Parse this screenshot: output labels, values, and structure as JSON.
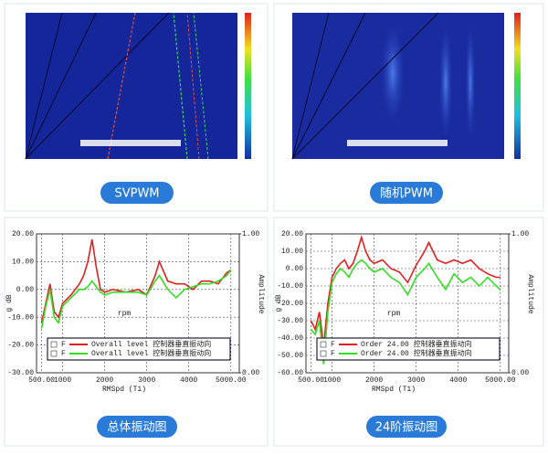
{
  "panels": [
    {
      "caption": "SVPWM"
    },
    {
      "caption": "随机PWM"
    }
  ],
  "chart_data": [
    {
      "type": "line",
      "caption": "总体振动图",
      "ylabel": "g dB",
      "y2label": "Amplitude",
      "xlabel": "RMSpd (T1)",
      "xunit": "rpm",
      "x": [
        500,
        600,
        700,
        800,
        900,
        1000,
        1200,
        1400,
        1500,
        1600,
        1700,
        1800,
        1900,
        2000,
        2200,
        2500,
        2800,
        3000,
        3200,
        3300,
        3500,
        3700,
        3900,
        4100,
        4300,
        4500,
        4700,
        4900,
        5000
      ],
      "series": [
        {
          "flag": "F",
          "name": "Overall level 控制器垂直振动向",
          "color": "#e02020",
          "values": [
            -12,
            -5,
            2,
            -8,
            -10,
            -5,
            -2,
            2,
            5,
            10,
            18,
            8,
            0,
            -1,
            0,
            -1,
            0,
            -2,
            5,
            10,
            3,
            2,
            2,
            0,
            3,
            3,
            2,
            6,
            7
          ]
        },
        {
          "flag": "F",
          "name": "Overall level 控制器垂直振动向",
          "color": "#33dd22",
          "values": [
            -14,
            -6,
            0,
            -10,
            -12,
            -6,
            -3,
            0,
            0,
            1,
            3,
            1,
            -1,
            -2,
            -1,
            -1,
            -1,
            -2,
            3,
            5,
            0,
            -3,
            0,
            1,
            2,
            2,
            3,
            5,
            7
          ]
        }
      ],
      "xlim": [
        380,
        5200
      ],
      "xticks": [
        {
          "value": 500,
          "label": "500.00"
        },
        1000,
        2000,
        3000,
        4000,
        {
          "value": 5000,
          "label": "5000.00"
        }
      ],
      "ylim": [
        -30,
        20
      ],
      "yticks": [
        {
          "value": 20,
          "label": "20.00"
        },
        {
          "value": 10,
          "label": "10.00"
        },
        {
          "value": 0,
          "label": "0.00"
        },
        {
          "value": -10,
          "label": "-10.00"
        },
        {
          "value": -20,
          "label": "-20.00"
        },
        {
          "value": -30,
          "label": "-30.00"
        }
      ],
      "y2lim": [
        0,
        1
      ],
      "y2ticks": [
        {
          "value": 1,
          "label": "1.00"
        },
        {
          "value": 0,
          "label": "0.00"
        }
      ],
      "grid": true
    },
    {
      "type": "line",
      "caption": "24阶振动图",
      "ylabel": "g dB",
      "y2label": "Amplitude",
      "xlabel": "RMSpd (T1)",
      "xunit": "rpm",
      "x": [
        500,
        600,
        700,
        800,
        900,
        1000,
        1100,
        1200,
        1300,
        1400,
        1500,
        1600,
        1700,
        1800,
        1900,
        2000,
        2200,
        2400,
        2600,
        2800,
        3000,
        3200,
        3300,
        3500,
        3700,
        3900,
        4100,
        4300,
        4500,
        4700,
        4900,
        5000
      ],
      "series": [
        {
          "flag": "F",
          "name": "Order 24.00 控制器垂直振动向",
          "color": "#e02020",
          "values": [
            -30,
            -35,
            -25,
            -45,
            -20,
            -5,
            0,
            3,
            5,
            0,
            3,
            10,
            18,
            10,
            5,
            3,
            5,
            0,
            -2,
            -8,
            2,
            10,
            15,
            5,
            3,
            5,
            3,
            5,
            0,
            -3,
            -5,
            -5
          ]
        },
        {
          "flag": "F",
          "name": "Order 24.00 控制器垂直振动向",
          "color": "#33dd22",
          "values": [
            -35,
            -38,
            -30,
            -55,
            -25,
            -8,
            -3,
            0,
            -2,
            -5,
            0,
            3,
            5,
            3,
            0,
            -2,
            0,
            -5,
            -8,
            -15,
            -5,
            0,
            3,
            -5,
            -12,
            -3,
            -8,
            -5,
            -10,
            -5,
            -10,
            -12
          ]
        }
      ],
      "xlim": [
        380,
        5200
      ],
      "xticks": [
        {
          "value": 500,
          "label": "500.00"
        },
        1000,
        2000,
        3000,
        4000,
        {
          "value": 5000,
          "label": "5000.00"
        }
      ],
      "ylim": [
        -60,
        20
      ],
      "yticks": [
        {
          "value": 20,
          "label": "20.00"
        },
        {
          "value": 10,
          "label": "10.00"
        },
        {
          "value": 0,
          "label": "0.00"
        },
        {
          "value": -10,
          "label": "-10.00"
        },
        {
          "value": -20,
          "label": "-20.00"
        },
        {
          "value": -30,
          "label": "-30.00"
        },
        {
          "value": -40,
          "label": "-40.00"
        },
        {
          "value": -50,
          "label": "-50.00"
        },
        {
          "value": -60,
          "label": "-60.00"
        }
      ],
      "y2lim": [
        0,
        1
      ],
      "y2ticks": [
        {
          "value": 1,
          "label": "1.00"
        },
        {
          "value": 0,
          "label": "0.00"
        }
      ],
      "grid": true
    }
  ]
}
